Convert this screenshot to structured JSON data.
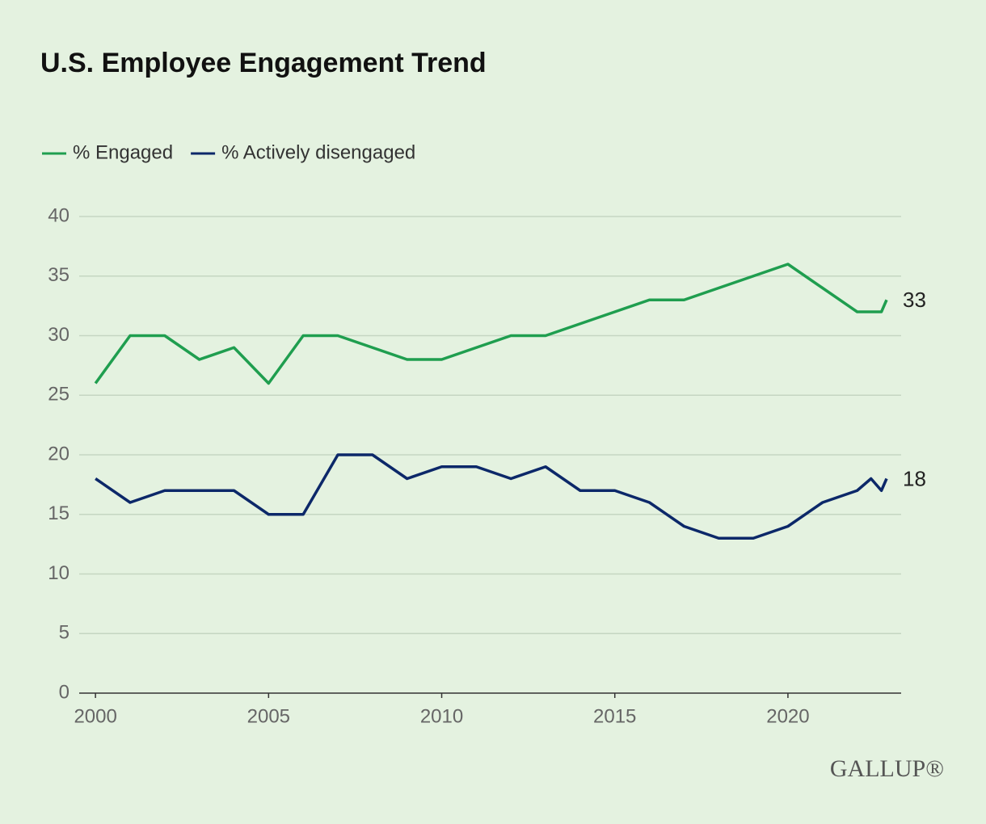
{
  "chart_data": {
    "type": "line",
    "title": "U.S. Employee Engagement Trend",
    "x": [
      2000,
      2001,
      2002,
      2003,
      2004,
      2005,
      2006,
      2007,
      2008,
      2009,
      2010,
      2011,
      2012,
      2013,
      2014,
      2015,
      2016,
      2017,
      2018,
      2019,
      2020,
      2021,
      2022,
      2022.4,
      2022.7,
      2022.85
    ],
    "series": [
      {
        "name": "% Engaged",
        "color": "#1f9e4f",
        "values": [
          26,
          30,
          30,
          28,
          29,
          26,
          30,
          30,
          29,
          28,
          28,
          29,
          30,
          30,
          31,
          32,
          33,
          33,
          34,
          35,
          36,
          34,
          32,
          32,
          32,
          33
        ]
      },
      {
        "name": "% Actively disengaged",
        "color": "#0c2869",
        "values": [
          18,
          16,
          17,
          17,
          17,
          15,
          15,
          20,
          20,
          18,
          19,
          19,
          18,
          19,
          17,
          17,
          16,
          14,
          13,
          13,
          14,
          16,
          17,
          18,
          17,
          18
        ]
      }
    ],
    "xlim": [
      1999.53,
      2023.27
    ],
    "xticks": [
      2000,
      2005,
      2010,
      2015,
      2020
    ],
    "ylim": [
      0,
      40
    ],
    "yticks": [
      0,
      5,
      10,
      15,
      20,
      25,
      30,
      35,
      40
    ],
    "grid": true,
    "legend": "top-left",
    "logo": "GALLUP®"
  }
}
